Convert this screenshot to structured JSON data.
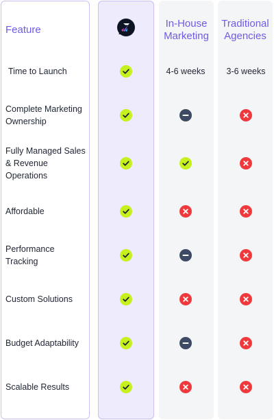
{
  "headers": {
    "feature": "Feature",
    "inhouse": "In-House Marketing",
    "agency": "Traditional Agencies"
  },
  "brand_logo": "brand-logo",
  "colors": {
    "accent": "#6d5ae6",
    "check": "#c6f01e",
    "cross": "#f0393d",
    "neutral": "#3d4a63"
  },
  "rows": [
    {
      "label": "Time to Launch",
      "brand": "check",
      "inhouse_text": "4-6 weeks",
      "agency_text": "3-6 weeks"
    },
    {
      "label": "Complete Marketing Ownership",
      "brand": "check",
      "inhouse": "dash",
      "agency": "cross"
    },
    {
      "label": "Fully Managed Sales & Revenue Operations",
      "brand": "check",
      "inhouse": "check",
      "agency": "cross"
    },
    {
      "label": "Affordable",
      "brand": "check",
      "inhouse": "cross",
      "agency": "cross"
    },
    {
      "label": "Performance Tracking",
      "brand": "check",
      "inhouse": "dash",
      "agency": "cross"
    },
    {
      "label": "Custom Solutions",
      "brand": "check",
      "inhouse": "cross",
      "agency": "cross"
    },
    {
      "label": "Budget Adaptability",
      "brand": "check",
      "inhouse": "dash",
      "agency": "cross"
    },
    {
      "label": "Scalable Results",
      "brand": "check",
      "inhouse": "cross",
      "agency": "cross"
    }
  ]
}
